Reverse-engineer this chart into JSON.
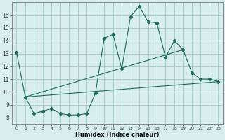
{
  "xlabel": "Humidex (Indice chaleur)",
  "bg_color": "#d8eeed",
  "grid_color": "#aacfcc",
  "line_color": "#1a6b5a",
  "xlim": [
    -0.5,
    23.5
  ],
  "ylim": [
    7.5,
    17.0
  ],
  "xticks": [
    0,
    1,
    2,
    3,
    4,
    5,
    6,
    7,
    8,
    9,
    10,
    11,
    12,
    13,
    14,
    15,
    16,
    17,
    18,
    19,
    20,
    21,
    22,
    23
  ],
  "yticks": [
    8,
    9,
    10,
    11,
    12,
    13,
    14,
    15,
    16
  ],
  "main_x": [
    0,
    1,
    2,
    3,
    4,
    5,
    6,
    7,
    8,
    9,
    10,
    11,
    12,
    13,
    14,
    15,
    16,
    17,
    18,
    19,
    20,
    21,
    22,
    23
  ],
  "main_y": [
    13.1,
    9.6,
    8.3,
    8.5,
    8.7,
    8.3,
    8.2,
    8.2,
    8.3,
    9.9,
    14.2,
    14.5,
    11.8,
    15.9,
    16.7,
    15.5,
    15.4,
    12.7,
    14.0,
    13.3,
    11.5,
    11.0,
    11.0,
    10.8
  ],
  "trend1_x": [
    1,
    23
  ],
  "trend1_y": [
    9.6,
    10.8
  ],
  "trend2_x": [
    1,
    19
  ],
  "trend2_y": [
    9.6,
    13.3
  ]
}
